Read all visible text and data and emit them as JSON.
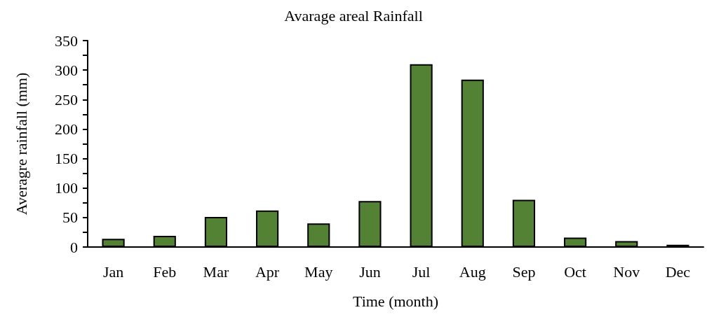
{
  "chart_data": {
    "type": "bar",
    "title": "Avarage areal Rainfall",
    "xlabel": "Time (month)",
    "ylabel": "Averagre rainfall (mm)",
    "categories": [
      "Jan",
      "Feb",
      "Mar",
      "Apr",
      "May",
      "Jun",
      "Jul",
      "Aug",
      "Sep",
      "Oct",
      "Nov",
      "Dec"
    ],
    "values": [
      14,
      19,
      51,
      62,
      40,
      78,
      310,
      284,
      80,
      16,
      10,
      4
    ],
    "color": "#548235",
    "ylim": [
      0,
      350
    ],
    "yticks": [
      0,
      {
        "value": 25,
        "label": null
      },
      50,
      {
        "value": 75,
        "label": null
      },
      100,
      {
        "value": 125,
        "label": null
      },
      150,
      {
        "value": 175,
        "label": null
      },
      200,
      {
        "value": 225,
        "label": null
      },
      250,
      {
        "value": 275,
        "label": null
      },
      300,
      {
        "value": 325,
        "label": null
      },
      350
    ],
    "grid": false
  }
}
